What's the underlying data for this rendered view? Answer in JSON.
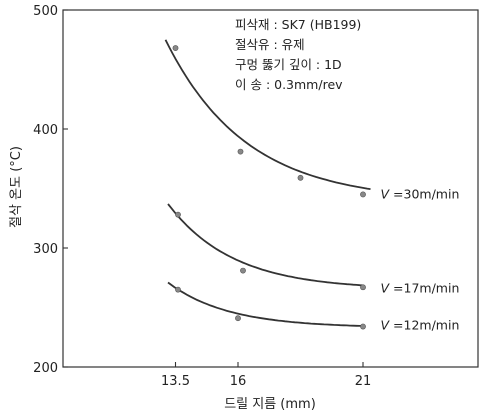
{
  "chart_data": {
    "type": "line",
    "title": "",
    "xlabel": "드릴 지름 (mm)",
    "ylabel": "절삭 온도 (°C)",
    "xlim": [
      9,
      25.6
    ],
    "ylim": [
      200,
      500
    ],
    "xticks": [
      13.5,
      16,
      21
    ],
    "xtick_labels": [
      "13.5",
      "16",
      "21"
    ],
    "yticks": [
      200,
      300,
      400,
      500
    ],
    "ytick_labels": [
      "200",
      "300",
      "400",
      "500"
    ],
    "grid": false,
    "annotations": [
      "피삭재 : SK7 (HB199)",
      "절삭유 : 유제",
      "구멍 뚫기 깊이 : 1D",
      "이  송 : 0.3mm/rev"
    ],
    "series": [
      {
        "name": "V =30m/min",
        "label_italic_part": "V",
        "label_rest": " =30m/min",
        "x": [
          13.5,
          16.1,
          18.5,
          21
        ],
        "values": [
          468,
          381,
          359,
          345
        ],
        "curve": {
          "x0": 13.1,
          "x1": 21.3,
          "xmin": 22.3,
          "a": 136,
          "b": 3.2,
          "c": 339
        },
        "label_at": {
          "x": 21.7,
          "y": 345
        }
      },
      {
        "name": "V =17m/min",
        "label_italic_part": "V",
        "label_rest": " =17m/min",
        "x": [
          13.6,
          16.2,
          21
        ],
        "values": [
          328,
          281,
          267
        ],
        "curve": {
          "x0": 13.2,
          "x1": 21.0,
          "xmin": 21.2,
          "a": 72,
          "b": 2.6,
          "c": 265
        },
        "label_at": {
          "x": 21.7,
          "y": 266
        }
      },
      {
        "name": "V =12m/min",
        "label_italic_part": "V",
        "label_rest": " =12m/min",
        "x": [
          13.6,
          16.0,
          21
        ],
        "values": [
          265,
          241,
          234
        ],
        "curve": {
          "x0": 13.2,
          "x1": 21.0,
          "xmin": 21.2,
          "a": 38,
          "b": 2.4,
          "c": 233
        },
        "label_at": {
          "x": 21.7,
          "y": 235
        }
      }
    ]
  }
}
